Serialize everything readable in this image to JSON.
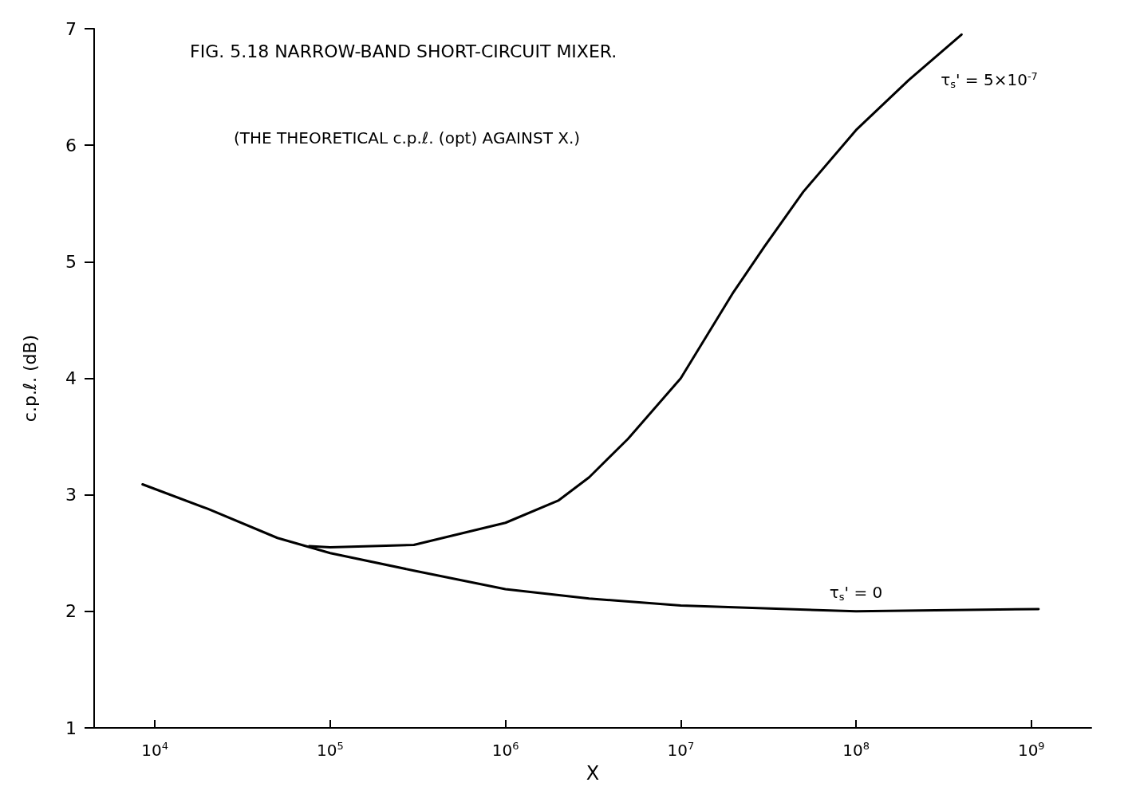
{
  "chart_data": {
    "type": "line",
    "title": "FIG. 5.18 NARROW-BAND SHORT-CIRCUIT MIXER.",
    "subtitle": "(THE THEORETICAL c.p.ℓ. (opt) AGAINST X.)",
    "xlabel": "X",
    "ylabel": "c.p.ℓ. (dB)",
    "log": "x",
    "xlim": [
      4500,
      2200000000
    ],
    "ylim": [
      1,
      7
    ],
    "xticks": [
      {
        "value": 10000,
        "label": "10$^{4}$"
      },
      {
        "value": 100000,
        "label": "10$^{5}$"
      },
      {
        "value": 1000000,
        "label": "10$^{6}$"
      },
      {
        "value": 10000000,
        "label": "10$^{7}$"
      },
      {
        "value": 100000000,
        "label": "10$^{8}$"
      },
      {
        "value": 1000000000,
        "label": "10$^{9}$"
      }
    ],
    "yticks": [
      1,
      2,
      3,
      4,
      5,
      6,
      7
    ],
    "grid": false,
    "legend": false,
    "marker": "none",
    "line_style": "solid",
    "series": [
      {
        "name": "τ$_{s}$' = 5×10$^{-7}$",
        "color": "#000000",
        "x": [
          76000,
          100000,
          300000,
          1000000,
          2000000,
          3000000,
          5000000,
          10000000,
          20000000,
          30000000,
          50000000,
          100000000,
          200000000,
          400000000
        ],
        "values": [
          2.56,
          2.55,
          2.57,
          2.76,
          2.95,
          3.15,
          3.48,
          4.0,
          4.74,
          5.13,
          5.6,
          6.13,
          6.56,
          6.95
        ]
      },
      {
        "name": "τ$_{s}$' = 0",
        "color": "#000000",
        "x": [
          8500,
          20000,
          50000,
          100000,
          300000,
          1000000,
          3000000,
          10000000,
          100000000,
          1100000000
        ],
        "values": [
          3.09,
          2.88,
          2.63,
          2.5,
          2.35,
          2.19,
          2.11,
          2.05,
          2.0,
          2.02
        ]
      }
    ]
  }
}
